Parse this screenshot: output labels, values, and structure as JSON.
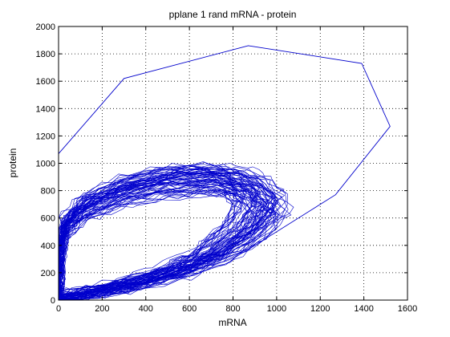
{
  "chart_data": {
    "type": "line",
    "title": "pplane 1 rand mRNA - protein",
    "xlabel": "mRNA",
    "ylabel": "protein",
    "xlim": [
      0,
      1600
    ],
    "ylim": [
      0,
      2000
    ],
    "xticks": [
      0,
      200,
      400,
      600,
      800,
      1000,
      1200,
      1400,
      1600
    ],
    "yticks": [
      0,
      200,
      400,
      600,
      800,
      1000,
      1200,
      1400,
      1600,
      1800,
      2000
    ],
    "grid": true,
    "line_color": "#0000CC",
    "series": [
      {
        "values_note": "",
        "x": [
          0,
          300,
          870,
          1390,
          1520,
          1270,
          880,
          600,
          300,
          60,
          0
        ],
        "y": [
          1070,
          1620,
          1860,
          1730,
          1270,
          770,
          380,
          200,
          80,
          10,
          0
        ]
      }
    ]
  }
}
